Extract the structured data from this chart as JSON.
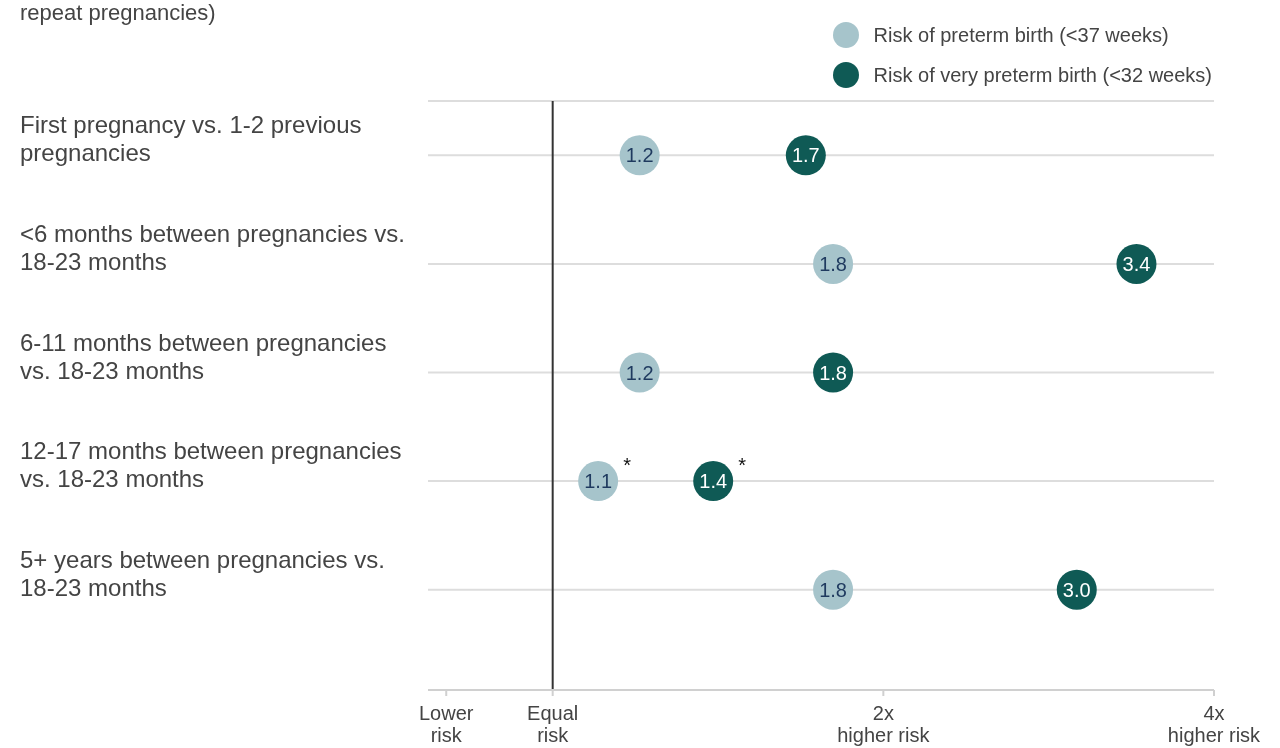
{
  "chart_data": {
    "type": "scatter",
    "orientation": "horizontal",
    "subtitle": "repeat pregnancies)",
    "categories": [
      "First pregnancy vs. 1-2 previous pregnancies",
      "<6 months between pregnancies vs. 18-23 months",
      "6-11 months between pregnancies vs. 18-23 months",
      "12-17 months between pregnancies vs. 18-23 months",
      "5+ years between pregnancies vs. 18-23 months"
    ],
    "series": [
      {
        "name": "Risk of preterm birth (<37 weeks)",
        "color": "#a6c4cb",
        "values": [
          1.2,
          1.8,
          1.2,
          1.1,
          1.8
        ],
        "value_labels": [
          "1.2",
          "1.8",
          "1.2",
          "1.1",
          "1.8"
        ]
      },
      {
        "name": "Risk of very preterm birth (<32 weeks)",
        "color": "#0f5a55",
        "values": [
          1.7,
          3.4,
          1.8,
          1.4,
          3.0
        ],
        "value_labels": [
          "1.7",
          "3.4",
          "1.8",
          "1.4",
          "3.0"
        ]
      }
    ],
    "log": "x",
    "xlim": [
      0.77,
      4
    ],
    "xticks": [
      {
        "value": 0.8,
        "label": "Lower risk"
      },
      {
        "value": 1,
        "label": "Equal risk"
      },
      {
        "value": 2,
        "label": "2x higher risk"
      },
      {
        "value": 4,
        "label": "4x higher risk"
      }
    ],
    "ref_lines": [
      {
        "axis": "x",
        "value": 1,
        "color": "#333333"
      }
    ],
    "grid": "y",
    "legend": "top right",
    "marker": "circle",
    "annotations": [
      {
        "text": "*",
        "x": 1.1,
        "y": "12-17 months between pregnancies vs. 18-23 months"
      },
      {
        "text": "*",
        "x": 1.4,
        "y": "12-17 months between pregnancies vs. 18-23 months"
      }
    ]
  }
}
